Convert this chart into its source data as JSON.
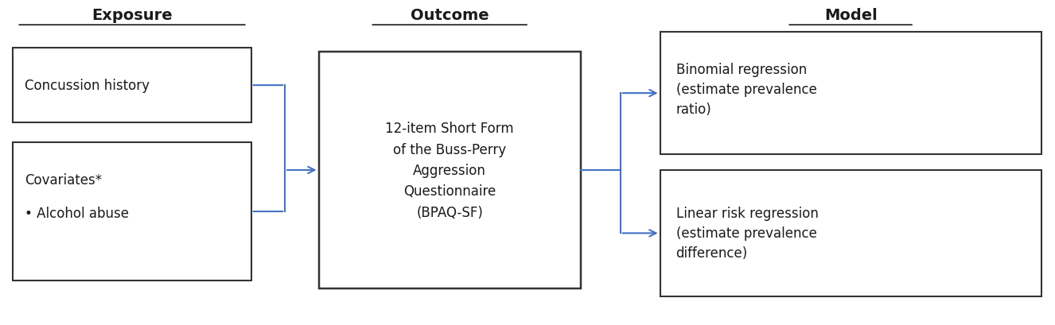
{
  "title_exposure": "Exposure",
  "title_outcome": "Outcome",
  "title_model": "Model",
  "box1_text": "Concussion history",
  "box2_line1": "Covariates*",
  "box2_line2": "• Alcohol abuse",
  "box_center_text": "12-item Short Form\nof the Buss-Perry\nAggression\nQuestionnaire\n(BPAQ-SF)",
  "box_top_right_text": "Binomial regression\n(estimate prevalence\nratio)",
  "box_bot_right_text": "Linear risk regression\n(estimate prevalence\ndifference)",
  "arrow_color": "#4472C4",
  "box_edge_color": "#333333",
  "bg_color": "#ffffff",
  "text_color": "#1a1a1a",
  "header_fontsize": 14,
  "body_fontsize": 12
}
